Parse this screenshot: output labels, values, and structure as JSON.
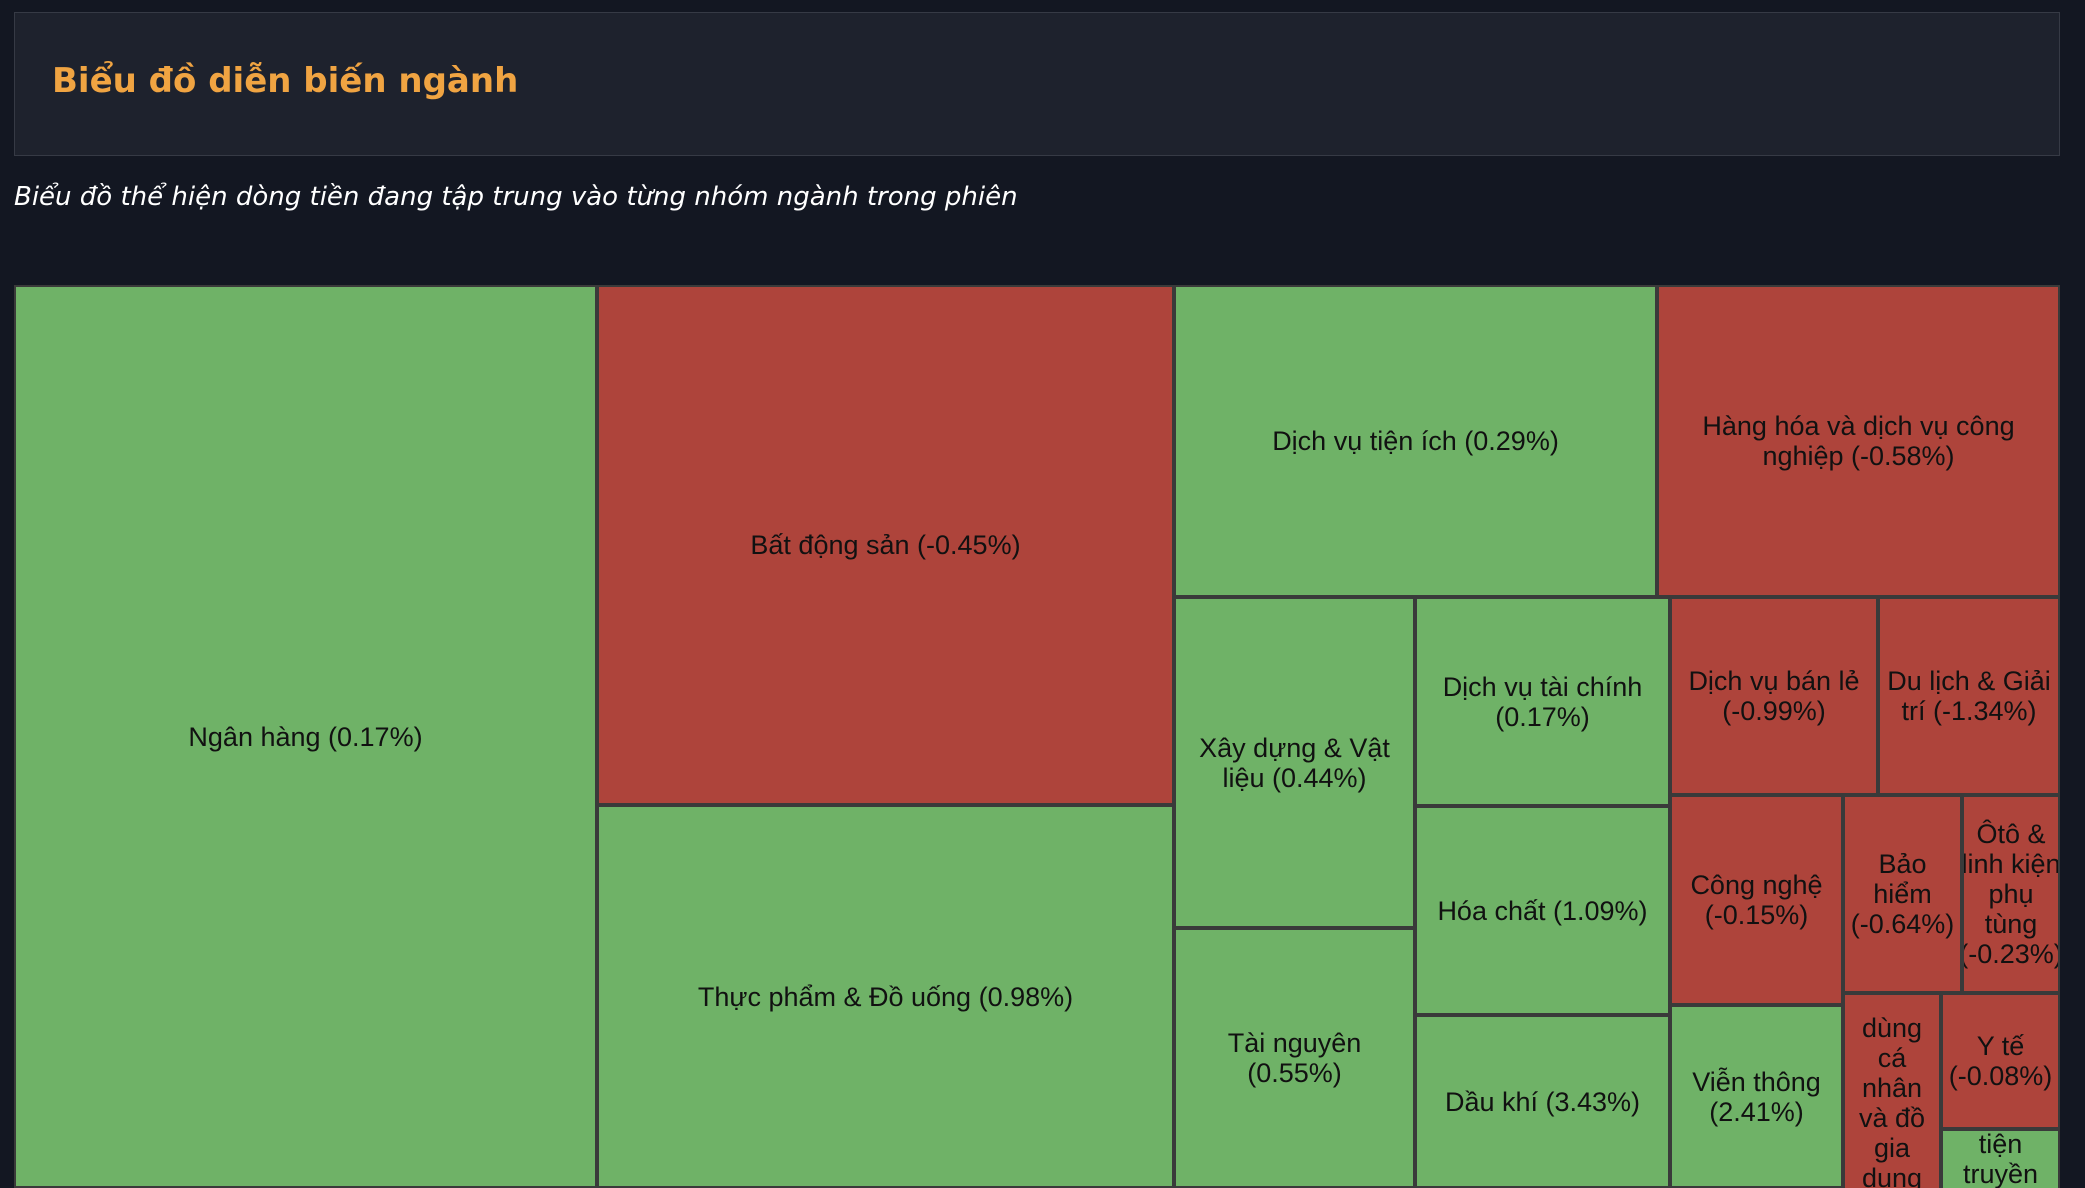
{
  "header": {
    "title": "Biểu đồ diễn biến ngành",
    "subtitle": "Biểu đồ thể hiện dòng tiền đang tập trung vào từng nhóm ngành trong phiên"
  },
  "colors": {
    "positive": "#6fb267",
    "negative": "#ae443b",
    "title": "#f0a442",
    "background": "#131722"
  },
  "chart_data": {
    "type": "treemap",
    "title": "",
    "items": [
      {
        "name": "Ngân hàng",
        "change_pct": 0.17,
        "label": "Ngân hàng (0.17%)"
      },
      {
        "name": "Bất động sản",
        "change_pct": -0.45,
        "label": "Bất động sản (-0.45%)"
      },
      {
        "name": "Thực phẩm & Đồ uống",
        "change_pct": 0.98,
        "label": "Thực phẩm & Đồ uống (0.98%)"
      },
      {
        "name": "Dịch vụ tiện ích",
        "change_pct": 0.29,
        "label": "Dịch vụ tiện ích (0.29%)"
      },
      {
        "name": "Hàng hóa và dịch vụ công nghiệp",
        "change_pct": -0.58,
        "label": "Hàng hóa và dịch vụ công nghiệp (-0.58%)"
      },
      {
        "name": "Xây dựng & Vật liệu",
        "change_pct": 0.44,
        "label": "Xây dựng & Vật liệu (0.44%)"
      },
      {
        "name": "Tài nguyên",
        "change_pct": 0.55,
        "label": "Tài nguyên (0.55%)"
      },
      {
        "name": "Dịch vụ tài chính",
        "change_pct": 0.17,
        "label": "Dịch vụ tài chính (0.17%)"
      },
      {
        "name": "Hóa chất",
        "change_pct": 1.09,
        "label": "Hóa chất (1.09%)"
      },
      {
        "name": "Dầu khí",
        "change_pct": 3.43,
        "label": "Dầu khí (3.43%)"
      },
      {
        "name": "Dịch vụ bán lẻ",
        "change_pct": -0.99,
        "label": "Dịch vụ bán lẻ (-0.99%)"
      },
      {
        "name": "Du lịch & Giải trí",
        "change_pct": -1.34,
        "label": "Du lịch & Giải trí (-1.34%)"
      },
      {
        "name": "Công nghệ",
        "change_pct": -0.15,
        "label": "Công nghệ (-0.15%)"
      },
      {
        "name": "Bảo hiểm",
        "change_pct": -0.64,
        "label": "Bảo hiểm (-0.64%)"
      },
      {
        "name": "Ôtô & linh kiện phụ tùng",
        "change_pct": -0.23,
        "label": "Ôtô & linh kiện phụ tùng (-0.23%)"
      },
      {
        "name": "Viễn thông",
        "change_pct": 2.41,
        "label": "Viễn thông (2.41%)"
      },
      {
        "name": "Hàng dùng cá nhân và đồ gia dụng",
        "change_pct": null,
        "label": "dùng cá nhân và đồ gia dụng"
      },
      {
        "name": "Y tế",
        "change_pct": -0.08,
        "label": "Y tế (-0.08%)"
      },
      {
        "name": "Phương tiện truyền thông",
        "change_pct": null,
        "label": "tiện truyền thông"
      }
    ]
  }
}
